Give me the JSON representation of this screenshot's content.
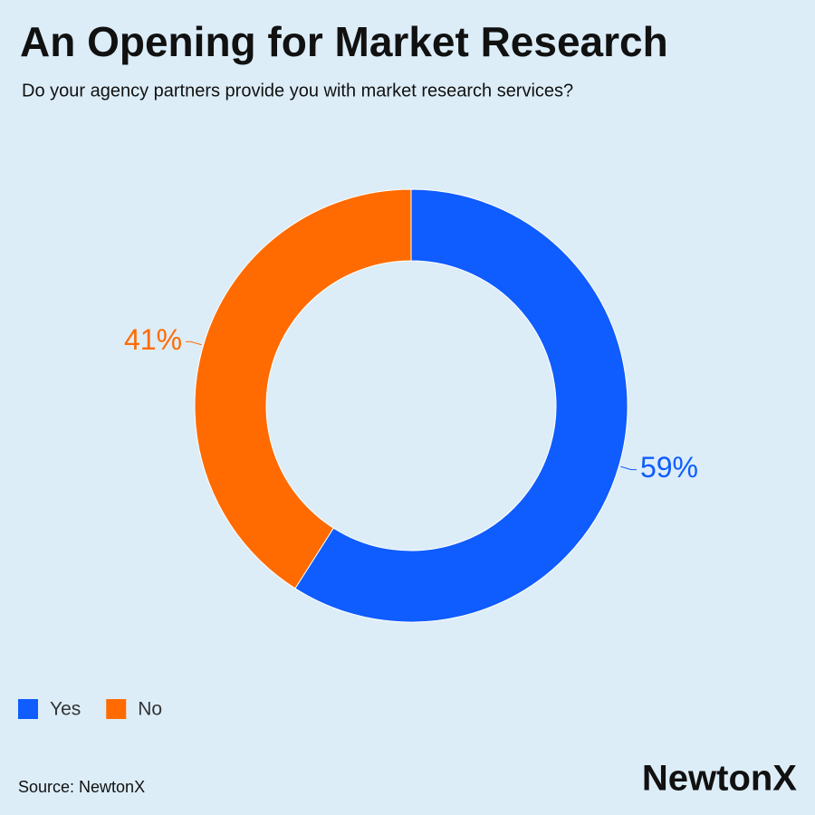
{
  "chart_data": {
    "type": "donut",
    "title": "An Opening for Market Research",
    "subtitle": "Do your agency partners provide you with market research services?",
    "categories": [
      "Yes",
      "No"
    ],
    "values": [
      59,
      41
    ],
    "value_labels": [
      "59%",
      "41%"
    ],
    "colors": [
      "#0f5cff",
      "#ff6b00"
    ],
    "legend": "bottom-left",
    "source": "Source: NewtonX",
    "brand": "NewtonX"
  }
}
